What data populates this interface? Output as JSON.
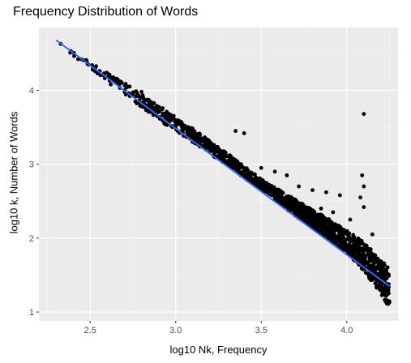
{
  "chart_data": {
    "type": "scatter",
    "title": "Frequency Distribution of Words",
    "xlabel": "log10 Nk, Frequency",
    "ylabel": "log10 k, Number of Words",
    "xlim": [
      2.2,
      4.3
    ],
    "ylim": [
      0.88,
      4.85
    ],
    "x_ticks": [
      2.5,
      3.0,
      3.5,
      4.0
    ],
    "x_tick_labels": [
      "2.5",
      "3.0",
      "3.5",
      "4.0"
    ],
    "y_ticks": [
      1,
      2,
      3,
      4
    ],
    "y_tick_labels": [
      "1",
      "2",
      "3",
      "4"
    ],
    "grid": true,
    "background": "#ebebeb",
    "point_color": "#000000",
    "line_color": "#3366ff",
    "trend_line": {
      "x": [
        2.3,
        4.25
      ],
      "y": [
        4.68,
        1.35
      ]
    },
    "band_x": [
      2.3,
      2.5,
      2.7,
      2.9,
      3.1,
      3.3,
      3.5,
      3.7,
      3.9,
      4.0,
      4.1,
      4.2,
      4.25
    ],
    "band_upper": [
      4.71,
      4.4,
      4.1,
      3.8,
      3.48,
      3.15,
      2.8,
      2.52,
      2.25,
      2.1,
      1.95,
      1.7,
      1.6
    ],
    "band_lower": [
      4.64,
      4.3,
      3.95,
      3.6,
      3.3,
      2.98,
      2.65,
      2.3,
      1.98,
      1.8,
      1.55,
      1.25,
      1.05
    ],
    "outliers": [
      {
        "x": 4.1,
        "y": 3.68
      },
      {
        "x": 4.09,
        "y": 2.85
      },
      {
        "x": 4.1,
        "y": 2.7
      },
      {
        "x": 4.08,
        "y": 2.55
      },
      {
        "x": 4.1,
        "y": 2.42
      },
      {
        "x": 3.96,
        "y": 2.58
      },
      {
        "x": 3.88,
        "y": 2.62
      },
      {
        "x": 3.8,
        "y": 2.65
      },
      {
        "x": 3.72,
        "y": 2.7
      },
      {
        "x": 3.5,
        "y": 2.95
      },
      {
        "x": 3.4,
        "y": 3.42
      },
      {
        "x": 3.35,
        "y": 3.45
      },
      {
        "x": 3.2,
        "y": 3.3
      },
      {
        "x": 3.15,
        "y": 3.35
      },
      {
        "x": 3.05,
        "y": 3.5
      },
      {
        "x": 2.92,
        "y": 3.75
      },
      {
        "x": 2.8,
        "y": 3.98
      },
      {
        "x": 2.72,
        "y": 4.05
      },
      {
        "x": 2.65,
        "y": 4.1
      },
      {
        "x": 2.62,
        "y": 4.08
      },
      {
        "x": 3.65,
        "y": 2.85
      },
      {
        "x": 3.58,
        "y": 2.9
      },
      {
        "x": 4.05,
        "y": 1.95
      },
      {
        "x": 4.02,
        "y": 2.25
      },
      {
        "x": 3.92,
        "y": 2.35
      },
      {
        "x": 4.15,
        "y": 2.05
      },
      {
        "x": 3.85,
        "y": 2.4
      }
    ]
  }
}
